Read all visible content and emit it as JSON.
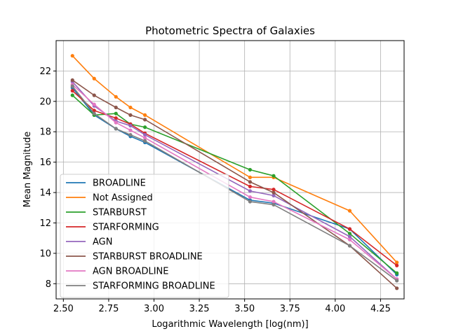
{
  "chart_data": {
    "type": "line",
    "title": "Photometric Spectra of Galaxies",
    "xlabel": "Logarithmic Wavelength [log(nm)]",
    "ylabel": "Mean Magnitude",
    "xlim": [
      2.46,
      4.38
    ],
    "ylim": [
      7.0,
      24.0
    ],
    "xticks": [
      "2.50",
      "2.75",
      "3.00",
      "3.25",
      "3.50",
      "3.75",
      "4.00",
      "4.25"
    ],
    "yticks": [
      "8",
      "10",
      "12",
      "14",
      "16",
      "18",
      "20",
      "22"
    ],
    "grid": true,
    "legend_position": "lower-left",
    "x": [
      2.55,
      2.67,
      2.79,
      2.87,
      2.95,
      3.53,
      3.66,
      4.08,
      4.34
    ],
    "series": [
      {
        "name": "BROADLINE",
        "color": "#1f77b4",
        "values": [
          20.9,
          19.1,
          18.2,
          17.7,
          17.3,
          13.5,
          13.3,
          11.6,
          8.6
        ]
      },
      {
        "name": "Not Assigned",
        "color": "#ff7f0e",
        "values": [
          23.0,
          21.5,
          20.3,
          19.6,
          19.1,
          15.0,
          15.0,
          12.8,
          9.4
        ]
      },
      {
        "name": "STARBURST",
        "color": "#2ca02c",
        "values": [
          20.4,
          19.1,
          19.2,
          18.5,
          18.3,
          15.5,
          15.1,
          11.3,
          8.7
        ]
      },
      {
        "name": "STARFORMING",
        "color": "#d62728",
        "values": [
          20.7,
          19.4,
          18.9,
          18.5,
          17.9,
          14.4,
          14.2,
          11.6,
          9.2
        ]
      },
      {
        "name": "AGN",
        "color": "#9467bd",
        "values": [
          21.3,
          19.7,
          18.7,
          18.4,
          17.8,
          14.1,
          13.8,
          11.1,
          8.3
        ]
      },
      {
        "name": "STARBURST BROADLINE",
        "color": "#8c564b",
        "values": [
          21.4,
          20.4,
          19.6,
          19.1,
          18.8,
          14.7,
          14.0,
          10.5,
          7.7
        ]
      },
      {
        "name": "AGN BROADLINE",
        "color": "#e377c2",
        "values": [
          21.1,
          19.8,
          18.6,
          18.1,
          17.6,
          13.7,
          13.4,
          10.9,
          8.3
        ]
      },
      {
        "name": "STARFORMING BROADLINE",
        "color": "#7f7f7f",
        "values": [
          21.0,
          19.2,
          18.2,
          17.8,
          17.4,
          13.4,
          13.2,
          10.5,
          8.2
        ]
      }
    ]
  }
}
